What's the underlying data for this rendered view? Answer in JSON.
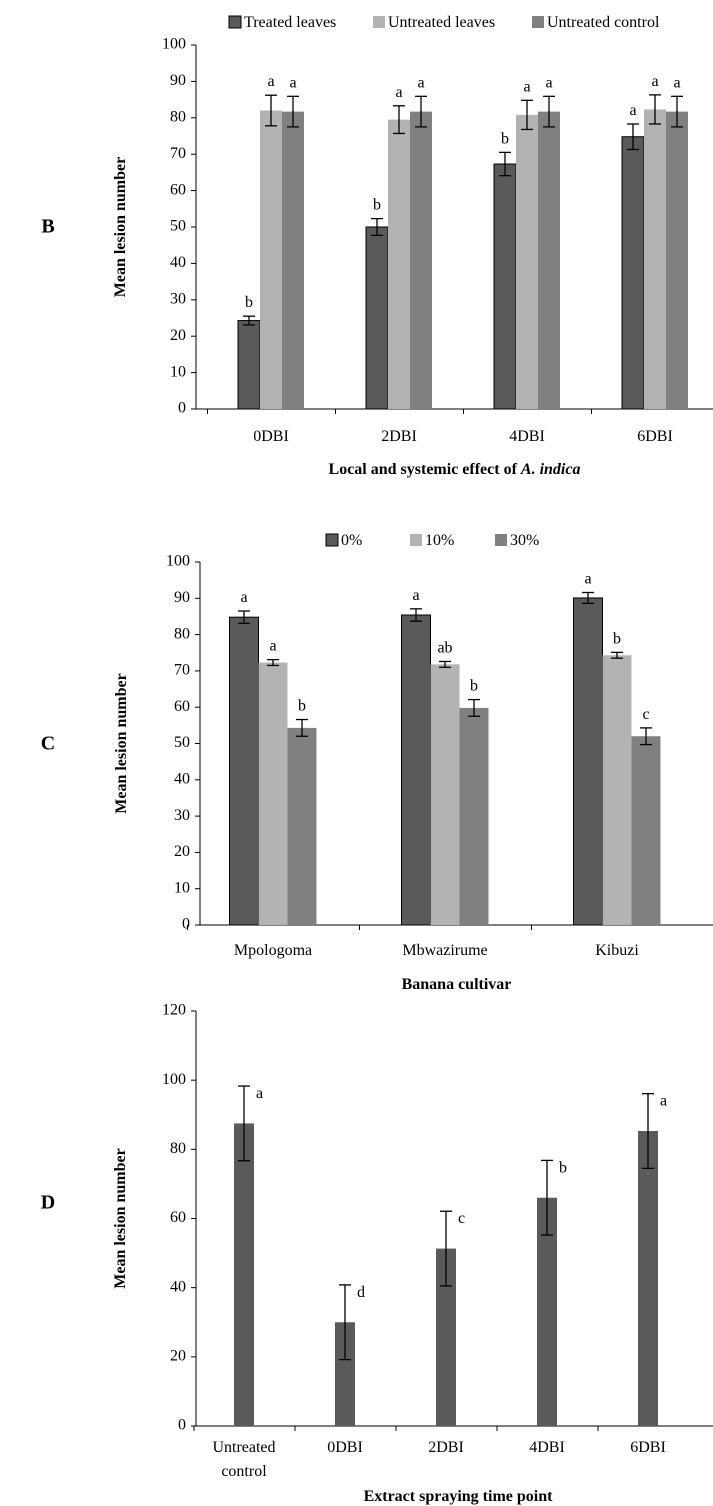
{
  "colors": {
    "dark": "#5a5a5a",
    "light": "#b3b3b3",
    "mid": "#808080",
    "axis": "#000000"
  },
  "chart_data": [
    {
      "panel_label": "B",
      "type": "bar",
      "title": "",
      "xlabel_parts": [
        {
          "text": "Local and systemic effect of ",
          "italic": false
        },
        {
          "text": "A. indica",
          "italic": true
        }
      ],
      "ylabel": "Mean lesion number",
      "ylim": [
        0,
        100
      ],
      "yticks": [
        0,
        10,
        20,
        30,
        40,
        50,
        60,
        70,
        80,
        90,
        100
      ],
      "categories": [
        "0DBI",
        "2DBI",
        "4DBI",
        "6DBI"
      ],
      "legend_position": "top",
      "grid": false,
      "series": [
        {
          "name": "Treated leaves",
          "color": "#5a5a5a",
          "values": [
            24.3,
            50,
            67.3,
            74.8
          ],
          "errors": [
            1.2,
            2.3,
            3.2,
            3.5
          ],
          "letters": [
            "b",
            "b",
            "b",
            "a"
          ]
        },
        {
          "name": "Untreated leaves",
          "color": "#b3b3b3",
          "values": [
            82,
            79.5,
            80.8,
            82.3
          ],
          "errors": [
            4.2,
            3.8,
            4.0,
            4.0
          ],
          "letters": [
            "a",
            "a",
            "a",
            "a"
          ]
        },
        {
          "name": "Untreated control",
          "color": "#808080",
          "values": [
            81.7,
            81.7,
            81.7,
            81.7
          ],
          "errors": [
            4.2,
            4.2,
            4.2,
            4.2
          ],
          "letters": [
            "a",
            "a",
            "a",
            "a"
          ]
        }
      ]
    },
    {
      "panel_label": "C",
      "type": "bar",
      "title": "",
      "xlabel_parts": [
        {
          "text": "Banana cultivar",
          "italic": false
        }
      ],
      "ylabel": "Mean lesion number",
      "ylim": [
        0,
        100
      ],
      "yticks": [
        0,
        10,
        20,
        30,
        40,
        50,
        60,
        70,
        80,
        90,
        100
      ],
      "categories": [
        "Mpologoma",
        "Mbwazirume",
        "Kibuzi"
      ],
      "legend_position": "top",
      "grid": false,
      "series": [
        {
          "name": "0%",
          "color": "#5a5a5a",
          "values": [
            84.8,
            85.4,
            90.1
          ],
          "errors": [
            1.7,
            1.7,
            1.5
          ],
          "letters": [
            "a",
            "a",
            "a"
          ]
        },
        {
          "name": "10%",
          "color": "#b3b3b3",
          "values": [
            72.3,
            71.8,
            74.3
          ],
          "errors": [
            0.8,
            0.8,
            0.8
          ],
          "letters": [
            "a",
            "ab",
            "b"
          ]
        },
        {
          "name": "30%",
          "color": "#808080",
          "values": [
            54.3,
            59.8,
            52
          ],
          "errors": [
            2.3,
            2.3,
            2.3
          ],
          "letters": [
            "b",
            "b",
            "c"
          ]
        }
      ]
    },
    {
      "panel_label": "D",
      "type": "bar",
      "title": "",
      "xlabel_parts": [
        {
          "text": "Extract spraying time point",
          "italic": false
        }
      ],
      "ylabel": "Mean lesion number",
      "ylim": [
        0,
        120
      ],
      "yticks": [
        0,
        20,
        40,
        60,
        80,
        100,
        120
      ],
      "categories": [
        "Untreated control",
        "0DBI",
        "2DBI",
        "4DBI",
        "6DBI"
      ],
      "legend_position": "none",
      "grid": false,
      "series": [
        {
          "color": "#5a5a5a",
          "values": [
            87.5,
            30,
            51.3,
            66,
            85.3
          ],
          "errors": [
            10.8,
            10.8,
            10.8,
            10.8,
            10.8
          ],
          "letters": [
            "a",
            "d",
            "c",
            "b",
            "a"
          ]
        }
      ]
    }
  ]
}
